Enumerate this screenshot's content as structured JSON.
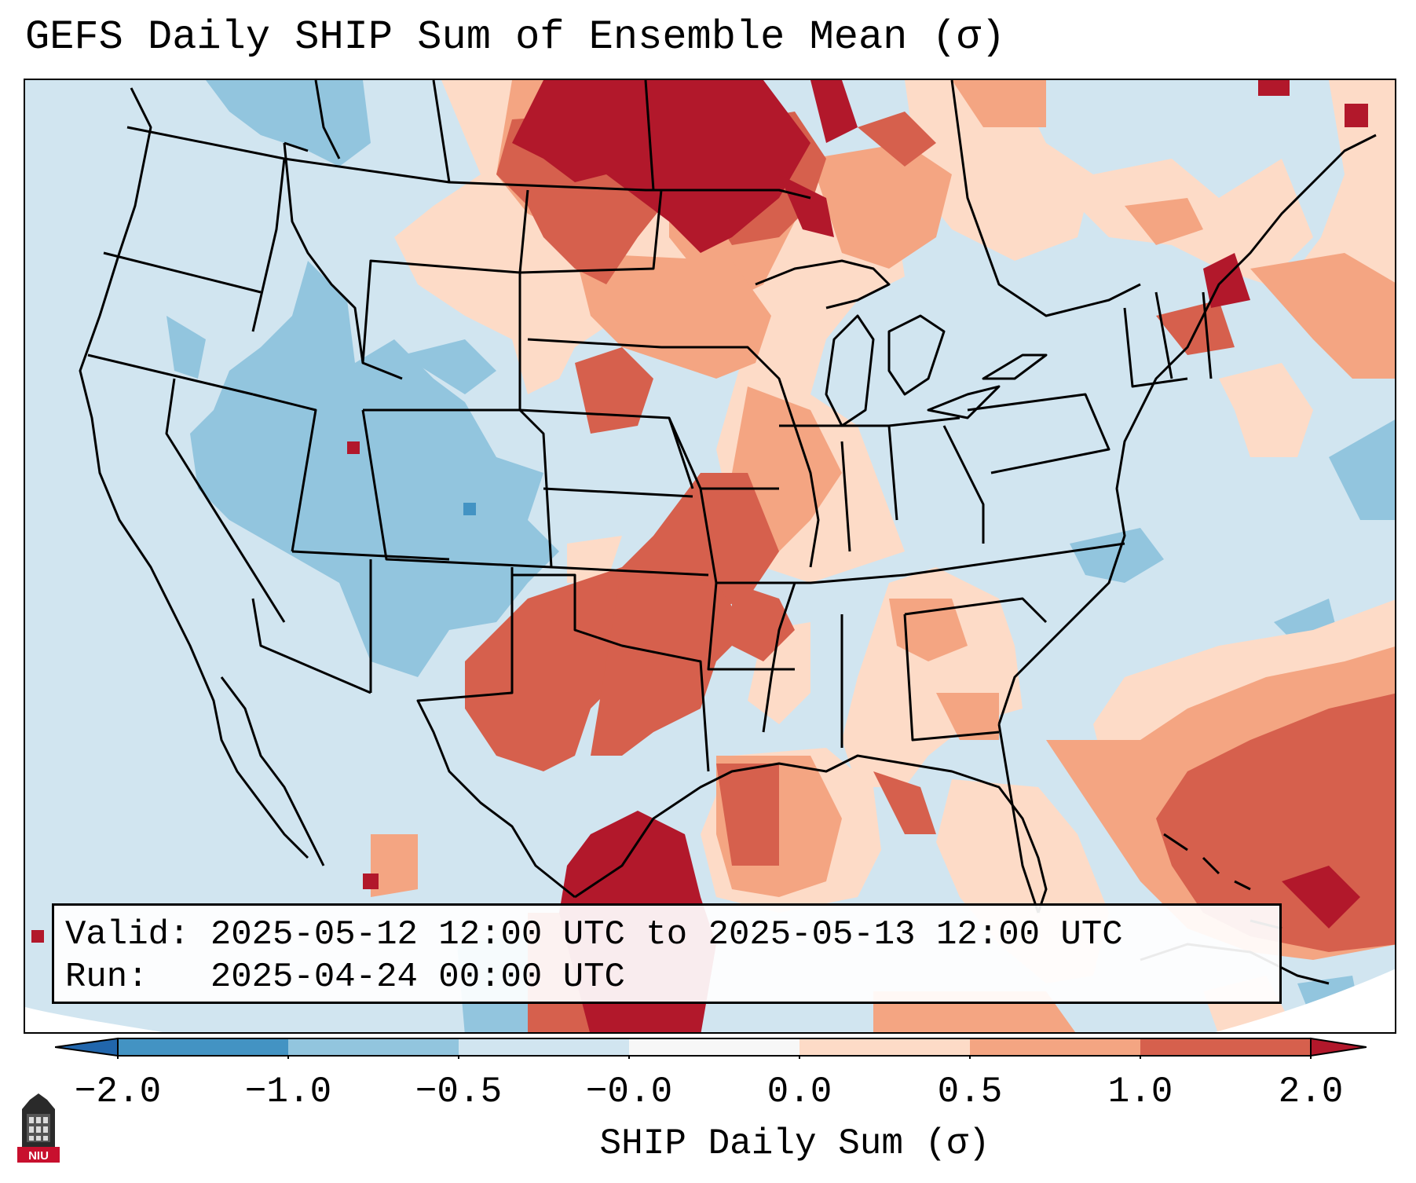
{
  "title": "GEFS Daily SHIP Sum of Ensemble Mean (σ)",
  "info": {
    "valid_label": "Valid:",
    "valid_value": "2025-05-12 12:00 UTC to 2025-05-13 12:00 UTC",
    "run_label": "Run:",
    "run_value": "2025-04-24 00:00 UTC"
  },
  "colorbar": {
    "label": "SHIP Daily Sum (σ)",
    "ticks": [
      "−2.0",
      "−1.0",
      "−0.5",
      "−0.0",
      "0.0",
      "0.5",
      "1.0",
      "2.0"
    ],
    "colors": {
      "below": "#2166ac",
      "bin1": "#4393c3",
      "bin2": "#92c5de",
      "bin3": "#d1e5f0",
      "bin4": "#f7f7f7",
      "bin5": "#fddbc7",
      "bin6": "#f4a582",
      "bin7": "#d6604d",
      "above": "#b2182b"
    }
  },
  "logo": {
    "text": "NIU",
    "icon": "niu-tower-logo-icon"
  }
}
